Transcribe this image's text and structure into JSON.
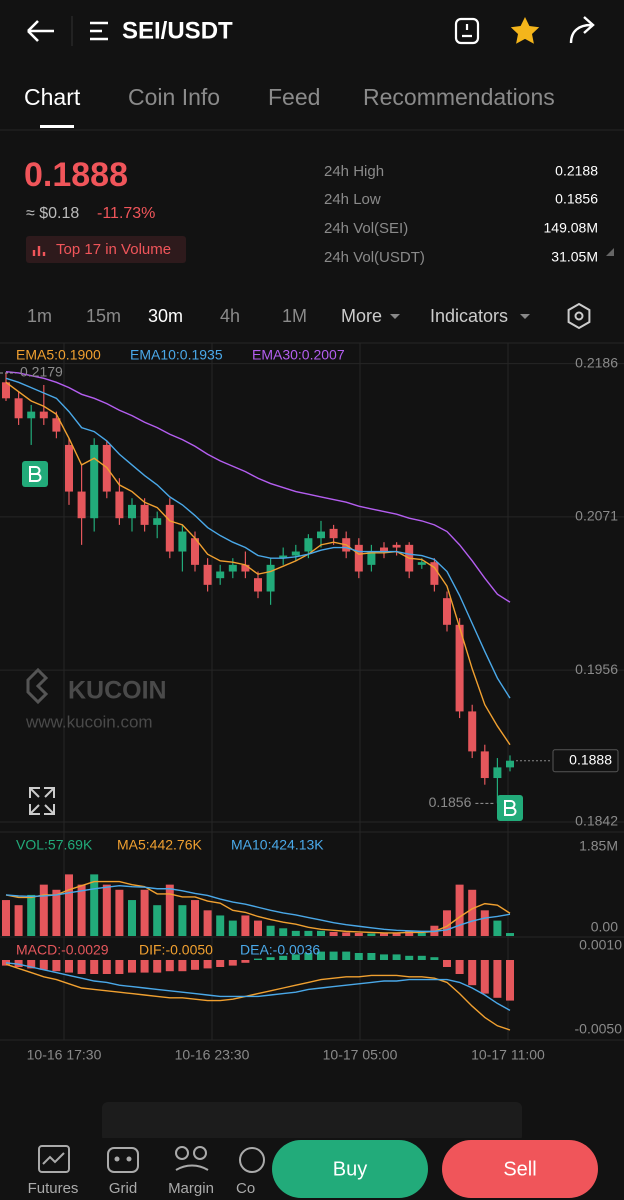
{
  "header": {
    "title": "SEI/USDT"
  },
  "tabs": [
    "Chart",
    "Coin Info",
    "Feed",
    "Recommendations"
  ],
  "ticker": {
    "price": "0.1888",
    "fiat": "≈ $0.18",
    "change": "-11.73%",
    "badge": "Top 17 in Volume",
    "stats": [
      {
        "label": "24h High",
        "value": "0.2188"
      },
      {
        "label": "24h Low",
        "value": "0.1856"
      },
      {
        "label": "24h Vol(SEI)",
        "value": "149.08M"
      },
      {
        "label": "24h Vol(USDT)",
        "value": "31.05M"
      }
    ]
  },
  "timeframes": [
    "1m",
    "15m",
    "30m",
    "4h",
    "1M"
  ],
  "more": "More",
  "indicators": "Indicators",
  "watermark": {
    "brand": "KUCOIN",
    "url": "www.kucoin.com"
  },
  "chart_data": {
    "type": "candlestick",
    "legend": [
      "EMA5:0.1900",
      "EMA10:0.1935",
      "EMA30:0.2007"
    ],
    "ylim": [
      0.18345,
      0.22
    ],
    "yticks": [
      0.2186,
      0.2071,
      0.1956,
      0.1842
    ],
    "up_color": "#22ab7a",
    "down_color": "#e5575c",
    "open": [
      0.2172,
      0.216,
      0.2145,
      0.215,
      0.2145,
      0.2125,
      0.209,
      0.207,
      0.2125,
      0.209,
      0.207,
      0.208,
      0.2065,
      0.208,
      0.2045,
      0.2055,
      0.2035,
      0.2025,
      0.203,
      0.2035,
      0.2025,
      0.2015,
      0.204,
      0.2042,
      0.2045,
      0.2055,
      0.2062,
      0.2055,
      0.205,
      0.2035,
      0.2048,
      0.205,
      0.205,
      0.2035,
      0.2037,
      0.201,
      0.199,
      0.1925,
      0.1895,
      0.1875,
      0.1883
    ],
    "high": [
      0.2179,
      0.2165,
      0.2155,
      0.217,
      0.215,
      0.213,
      0.211,
      0.213,
      0.2128,
      0.21,
      0.2085,
      0.2085,
      0.2075,
      0.2085,
      0.2065,
      0.206,
      0.204,
      0.2035,
      0.204,
      0.2045,
      0.203,
      0.204,
      0.2048,
      0.205,
      0.2058,
      0.2068,
      0.2065,
      0.206,
      0.2055,
      0.205,
      0.2052,
      0.2052,
      0.2052,
      0.204,
      0.204,
      0.2015,
      0.1995,
      0.193,
      0.19,
      0.189,
      0.1892
    ],
    "low": [
      0.2158,
      0.214,
      0.2125,
      0.214,
      0.213,
      0.208,
      0.205,
      0.206,
      0.2085,
      0.2065,
      0.206,
      0.206,
      0.2055,
      0.204,
      0.203,
      0.203,
      0.2015,
      0.202,
      0.2025,
      0.2025,
      0.201,
      0.2005,
      0.2035,
      0.2038,
      0.204,
      0.2048,
      0.205,
      0.204,
      0.2025,
      0.203,
      0.204,
      0.2042,
      0.2025,
      0.2032,
      0.2015,
      0.1985,
      0.192,
      0.189,
      0.187,
      0.1856,
      0.188
    ],
    "close": [
      0.216,
      0.2145,
      0.215,
      0.2145,
      0.2135,
      0.209,
      0.207,
      0.2125,
      0.209,
      0.207,
      0.208,
      0.2065,
      0.207,
      0.2045,
      0.206,
      0.2035,
      0.202,
      0.203,
      0.2035,
      0.203,
      0.2015,
      0.2035,
      0.2042,
      0.2045,
      0.2055,
      0.206,
      0.2055,
      0.2045,
      0.203,
      0.2045,
      0.2045,
      0.2048,
      0.203,
      0.2037,
      0.202,
      0.199,
      0.1925,
      0.1895,
      0.1875,
      0.1883,
      0.1888
    ],
    "lines": [
      {
        "name": "EMA5",
        "color": "#f0a030",
        "values": [
          0.2172,
          0.2165,
          0.2158,
          0.2154,
          0.2148,
          0.213,
          0.211,
          0.2115,
          0.2108,
          0.2095,
          0.209,
          0.2082,
          0.2078,
          0.2068,
          0.2065,
          0.2055,
          0.2043,
          0.2038,
          0.2037,
          0.2035,
          0.2028,
          0.203,
          0.2034,
          0.2038,
          0.2043,
          0.205,
          0.2052,
          0.205,
          0.2043,
          0.2044,
          0.2044,
          0.2045,
          0.204,
          0.2039,
          0.2033,
          0.2019,
          0.1988,
          0.1957,
          0.193,
          0.1914,
          0.19
        ]
      },
      {
        "name": "EMA10",
        "color": "#4aa8e8",
        "values": [
          0.2175,
          0.2172,
          0.2168,
          0.2164,
          0.216,
          0.215,
          0.2138,
          0.2135,
          0.2128,
          0.2118,
          0.211,
          0.2102,
          0.2095,
          0.2086,
          0.208,
          0.2072,
          0.2063,
          0.2057,
          0.2052,
          0.2048,
          0.2042,
          0.204,
          0.204,
          0.2041,
          0.2043,
          0.2046,
          0.2048,
          0.2048,
          0.2045,
          0.2045,
          0.2045,
          0.2045,
          0.2043,
          0.2042,
          0.2039,
          0.203,
          0.2012,
          0.1991,
          0.197,
          0.195,
          0.1935
        ]
      },
      {
        "name": "EMA30",
        "color": "#b45ef0",
        "values": [
          0.218,
          0.2179,
          0.2177,
          0.2175,
          0.2172,
          0.2168,
          0.2163,
          0.216,
          0.2156,
          0.2151,
          0.2147,
          0.2142,
          0.2138,
          0.2133,
          0.2129,
          0.2124,
          0.2118,
          0.2113,
          0.2109,
          0.2105,
          0.21,
          0.2096,
          0.2093,
          0.209,
          0.2088,
          0.2086,
          0.2084,
          0.2082,
          0.2079,
          0.2077,
          0.2075,
          0.2073,
          0.207,
          0.2068,
          0.2065,
          0.206,
          0.205,
          0.2038,
          0.2025,
          0.2013,
          0.2007
        ]
      }
    ],
    "high_label": 0.2179,
    "low_label": 0.1856,
    "last_price": 0.1888,
    "volume": {
      "legend": [
        "VOL:57.69K",
        "MA5:442.76K",
        "MA10:424.13K"
      ],
      "ylim": [
        0,
        1.85
      ],
      "yticks": [
        {
          "value": 1.85,
          "label": "1.85M"
        },
        {
          "value": 0,
          "label": "0.00"
        }
      ],
      "values": [
        0.7,
        0.6,
        0.8,
        1.0,
        0.9,
        1.2,
        1.0,
        1.2,
        1.0,
        0.9,
        0.7,
        0.9,
        0.6,
        1.0,
        0.6,
        0.7,
        0.5,
        0.4,
        0.3,
        0.4,
        0.3,
        0.2,
        0.15,
        0.1,
        0.1,
        0.1,
        0.08,
        0.07,
        0.06,
        0.05,
        0.05,
        0.05,
        0.1,
        0.06,
        0.2,
        0.5,
        1.0,
        0.9,
        0.5,
        0.3,
        0.05769
      ],
      "lines": [
        {
          "name": "MA5",
          "color": "#f0a030",
          "values": [
            0.8,
            0.75,
            0.75,
            0.8,
            0.8,
            0.9,
            0.98,
            1.06,
            1.06,
            1.06,
            1.0,
            0.96,
            0.82,
            0.82,
            0.76,
            0.76,
            0.68,
            0.64,
            0.5,
            0.46,
            0.38,
            0.32,
            0.27,
            0.23,
            0.17,
            0.13,
            0.11,
            0.09,
            0.08,
            0.07,
            0.06,
            0.06,
            0.07,
            0.07,
            0.09,
            0.19,
            0.37,
            0.53,
            0.63,
            0.6,
            0.443
          ]
        },
        {
          "name": "MA10",
          "color": "#4aa8e8",
          "values": [
            0.8,
            0.78,
            0.77,
            0.78,
            0.8,
            0.84,
            0.88,
            0.92,
            0.95,
            0.98,
            0.96,
            0.95,
            0.92,
            0.92,
            0.88,
            0.83,
            0.79,
            0.72,
            0.66,
            0.62,
            0.56,
            0.5,
            0.45,
            0.41,
            0.36,
            0.31,
            0.26,
            0.22,
            0.19,
            0.16,
            0.13,
            0.11,
            0.1,
            0.09,
            0.09,
            0.12,
            0.21,
            0.29,
            0.35,
            0.38,
            0.424
          ]
        }
      ]
    },
    "macd": {
      "legend": [
        "MACD:-0.0029",
        "DIF:-0.0050",
        "DEA:-0.0036"
      ],
      "ylim": [
        -0.005,
        0.001
      ],
      "yticks": [
        {
          "value": 0.001,
          "label": "0.0010"
        },
        {
          "value": -0.005,
          "label": "-0.0050"
        }
      ],
      "values": [
        -0.0004,
        -0.0005,
        -0.0006,
        -0.0007,
        -0.0008,
        -0.0009,
        -0.001,
        -0.001,
        -0.001,
        -0.001,
        -0.0009,
        -0.0009,
        -0.0009,
        -0.0008,
        -0.0008,
        -0.0007,
        -0.0006,
        -0.0005,
        -0.0004,
        -0.0002,
        0.0001,
        0.0002,
        0.0003,
        0.0004,
        0.0005,
        0.0006,
        0.0006,
        0.0006,
        0.0005,
        0.0005,
        0.0004,
        0.0004,
        0.0003,
        0.0003,
        0.0002,
        -0.0005,
        -0.001,
        -0.0018,
        -0.0024,
        -0.0027,
        -0.0029
      ],
      "lines": [
        {
          "name": "DIF",
          "color": "#f0a030",
          "values": [
            -0.0003,
            -0.0006,
            -0.0009,
            -0.0012,
            -0.0014,
            -0.0017,
            -0.002,
            -0.0021,
            -0.0022,
            -0.0023,
            -0.0024,
            -0.0025,
            -0.0026,
            -0.0027,
            -0.0027,
            -0.0028,
            -0.0029,
            -0.0029,
            -0.0028,
            -0.0026,
            -0.0024,
            -0.0022,
            -0.002,
            -0.0018,
            -0.0016,
            -0.0014,
            -0.0013,
            -0.0012,
            -0.0012,
            -0.0011,
            -0.0011,
            -0.0011,
            -0.0012,
            -0.0012,
            -0.0013,
            -0.0016,
            -0.0024,
            -0.0033,
            -0.0041,
            -0.0047,
            -0.005
          ]
        },
        {
          "name": "DEA",
          "color": "#4aa8e8",
          "values": [
            -0.0002,
            -0.0003,
            -0.0005,
            -0.0007,
            -0.0009,
            -0.0011,
            -0.0013,
            -0.0015,
            -0.0016,
            -0.0018,
            -0.0019,
            -0.002,
            -0.0021,
            -0.0022,
            -0.0023,
            -0.0024,
            -0.0025,
            -0.0026,
            -0.0026,
            -0.0026,
            -0.0026,
            -0.0025,
            -0.0024,
            -0.0023,
            -0.0021,
            -0.002,
            -0.0019,
            -0.0018,
            -0.0017,
            -0.0016,
            -0.0015,
            -0.0015,
            -0.0014,
            -0.0014,
            -0.0014,
            -0.0014,
            -0.0016,
            -0.002,
            -0.0025,
            -0.0031,
            -0.0036
          ]
        }
      ]
    },
    "time_labels": [
      "10-16 17:30",
      "10-16 23:30",
      "10-17 05:00",
      "10-17 11:00"
    ]
  },
  "nav": [
    "Futures",
    "Grid",
    "Margin",
    "Co"
  ],
  "buy": "Buy",
  "sell": "Sell"
}
